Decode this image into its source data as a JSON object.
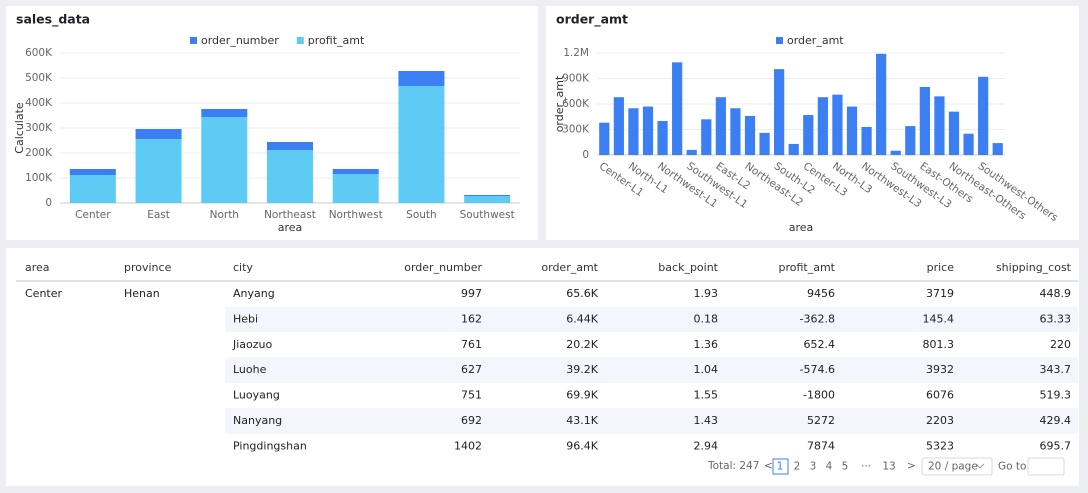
{
  "chart_data": [
    {
      "type": "bar",
      "title": "sales_data",
      "x_label": "area",
      "y_label": "Calculate",
      "stacked": true,
      "legend": "top",
      "grid": true,
      "categories": [
        "Center",
        "East",
        "North",
        "Northeast",
        "Northwest",
        "South",
        "Southwest"
      ],
      "series": [
        {
          "name": "order_number",
          "color": "#3b7ff3",
          "values": [
            24000,
            40000,
            32000,
            32000,
            20000,
            60000,
            4000
          ]
        },
        {
          "name": "profit_amt",
          "color": "#5ecbf5",
          "values": [
            112000,
            256000,
            344000,
            212000,
            116000,
            468000,
            28000
          ]
        }
      ],
      "ylim": [
        0,
        600000
      ],
      "yticks": [
        0,
        {
          "value": 100000,
          "label": "100K"
        },
        {
          "value": 200000,
          "label": "200K"
        },
        {
          "value": 300000,
          "label": "300K"
        },
        {
          "value": 400000,
          "label": "400K"
        },
        {
          "value": 500000,
          "label": "500K"
        },
        {
          "value": 600000,
          "label": "600K"
        }
      ]
    },
    {
      "type": "bar",
      "title": "order_amt",
      "x_label": "area",
      "y_label": "order_amt",
      "stacked": false,
      "legend": "top",
      "grid": true,
      "categories": [
        "Center-L1",
        null,
        "North-L1",
        null,
        "Northwest-L1",
        null,
        "Southwest-L1",
        null,
        "East-L2",
        null,
        "Northeast-L2",
        null,
        "South-L2",
        null,
        "Center-L3",
        null,
        "North-L3",
        null,
        "Northwest-L3",
        null,
        "Southwest-L3",
        null,
        "East-Others",
        null,
        "Northeast-Others",
        null,
        "Southwest-Others",
        null
      ],
      "series": [
        {
          "name": "order_amt",
          "color": "#3b7ff3",
          "values": [
            380000,
            680000,
            550000,
            570000,
            400000,
            1090000,
            60000,
            420000,
            680000,
            550000,
            460000,
            260000,
            1010000,
            130000,
            470000,
            680000,
            710000,
            570000,
            330000,
            1190000,
            50000,
            340000,
            800000,
            690000,
            510000,
            250000,
            920000,
            140000
          ]
        }
      ],
      "ylim": [
        0,
        1200000
      ],
      "yticks": [
        0,
        {
          "value": 300000,
          "label": "300K"
        },
        {
          "value": 600000,
          "label": "600K"
        },
        {
          "value": 900000,
          "label": "900K"
        },
        {
          "value": 1200000,
          "label": "1.2M"
        }
      ]
    }
  ],
  "table": {
    "columns": [
      "area",
      "province",
      "city",
      "order_number",
      "order_amt",
      "back_point",
      "profit_amt",
      "price",
      "shipping_cost"
    ],
    "groups": [
      {
        "area": "Center",
        "province": "Henan",
        "rows": [
          [
            "Anyang",
            "997",
            "65.6K",
            "1.93",
            "9456",
            "3719",
            "448.9"
          ],
          [
            "Hebi",
            "162",
            "6.44K",
            "0.18",
            "-362.8",
            "145.4",
            "63.33"
          ],
          [
            "Jiaozuo",
            "761",
            "20.2K",
            "1.36",
            "652.4",
            "801.3",
            "220"
          ],
          [
            "Luohe",
            "627",
            "39.2K",
            "1.04",
            "-574.6",
            "3932",
            "343.7"
          ],
          [
            "Luoyang",
            "751",
            "69.9K",
            "1.55",
            "-1800",
            "6076",
            "519.3"
          ],
          [
            "Nanyang",
            "692",
            "43.1K",
            "1.43",
            "5272",
            "2203",
            "429.4"
          ],
          [
            "Pingdingshan",
            "1402",
            "96.4K",
            "2.94",
            "7874",
            "5323",
            "695.7"
          ]
        ]
      }
    ]
  },
  "pagination": {
    "total": "Total: 247",
    "pages": [
      "1",
      "2",
      "3",
      "4",
      "5",
      "···",
      "13"
    ],
    "page_size": "20 / page",
    "goto": "Go to"
  }
}
